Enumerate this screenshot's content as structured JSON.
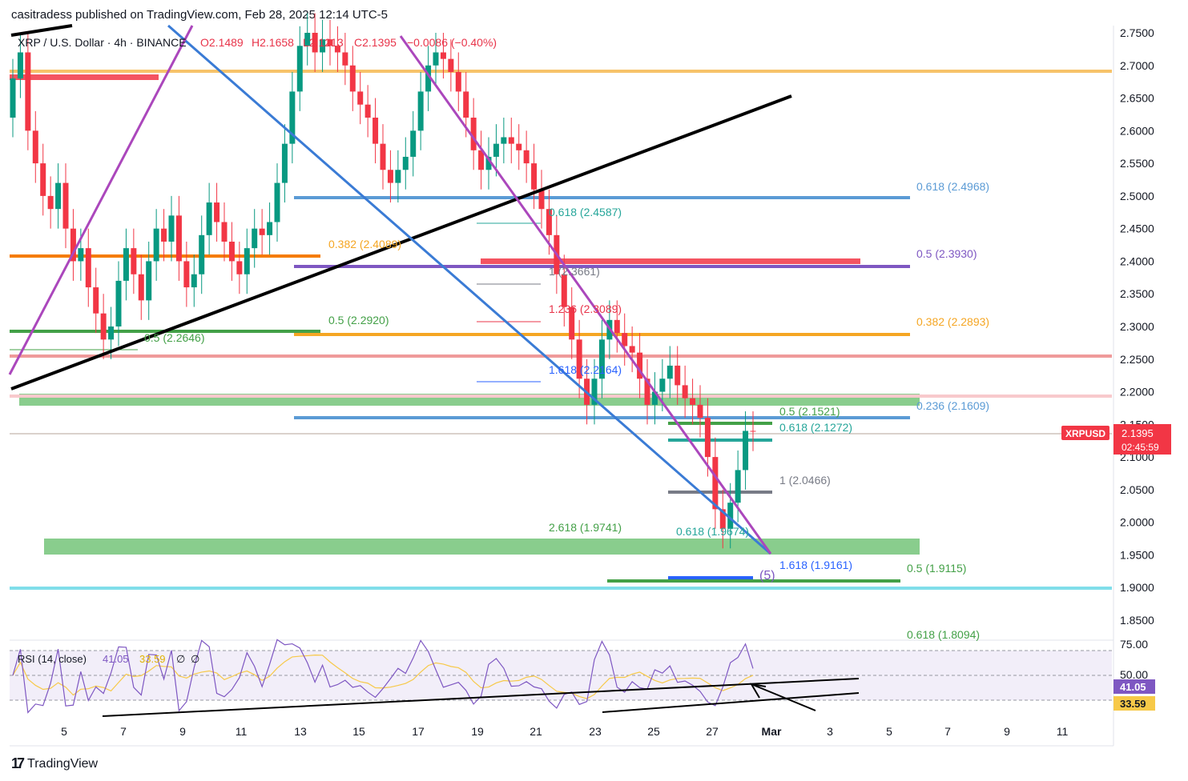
{
  "header": {
    "published_by": "casitradess published on TradingView.com, Feb 28, 2025 12:14 UTC-5"
  },
  "legend": {
    "symbol_line": "XRP / U.S. Dollar · 4h · BINANCE",
    "open": "O2.1489",
    "high": "H2.1658",
    "low": "L2.1213",
    "close": "C2.1395",
    "change": "−0.0086 (−0.40%)"
  },
  "price_axis": {
    "ticks": [
      "2.7500",
      "2.7000",
      "2.6500",
      "2.6000",
      "2.5500",
      "2.5000",
      "2.4500",
      "2.4000",
      "2.3500",
      "2.3000",
      "2.2500",
      "2.2000",
      "2.1500",
      "2.1000",
      "2.0500",
      "2.0000",
      "1.9500",
      "1.9000",
      "1.8500"
    ],
    "current_symbol": "XRPUSD",
    "current_price": "2.1395",
    "countdown": "02:45:59"
  },
  "rsi": {
    "label": "RSI (14, close)",
    "value": "41.05",
    "ma": "33.59",
    "extra1": "∅",
    "extra2": "∅",
    "ticks": [
      "75.00",
      "50.00"
    ],
    "badge_value": "41.05",
    "badge_ma": "33.59",
    "colors": {
      "rsi": "#7e57c2",
      "ma": "#f7c948",
      "band": "#ede7f6"
    }
  },
  "time_axis": {
    "ticks": [
      "5",
      "7",
      "9",
      "11",
      "13",
      "15",
      "17",
      "19",
      "21",
      "23",
      "25",
      "27",
      "Mar",
      "3",
      "5",
      "7",
      "9",
      "11"
    ]
  },
  "annotations": [
    {
      "text": "0.618 (2.4968)",
      "color": "#5b9bd5"
    },
    {
      "text": "0.618 (2.4587)",
      "color": "#26a69a"
    },
    {
      "text": "0.382 (2.4089)",
      "color": "#f5a623"
    },
    {
      "text": "0.5 (2.3930)",
      "color": "#7e57c2"
    },
    {
      "text": "1 (2.3661)",
      "color": "#787b86"
    },
    {
      "text": "1.236 (2.3089)",
      "color": "#e8344a"
    },
    {
      "text": "0.5 (2.2920)",
      "color": "#43a047"
    },
    {
      "text": "0.382 (2.2893)",
      "color": "#f5a623"
    },
    {
      "text": "0.5 (2.2646)",
      "color": "#43a047"
    },
    {
      "text": "1.618 (2.2164)",
      "color": "#2962ff"
    },
    {
      "text": "0.236 (2.1609)",
      "color": "#5b9bd5"
    },
    {
      "text": "0.5 (2.1521)",
      "color": "#43a047"
    },
    {
      "text": "0.618 (2.1272)",
      "color": "#26a69a"
    },
    {
      "text": "1 (2.0466)",
      "color": "#787b86"
    },
    {
      "text": "2.618 (1.9741)",
      "color": "#43a047"
    },
    {
      "text": "0.618 (1.9674)",
      "color": "#26a69a"
    },
    {
      "text": "1.618 (1.9161)",
      "color": "#2962ff"
    },
    {
      "text": "0.5 (1.9115)",
      "color": "#43a047"
    },
    {
      "text": "0.618 (1.8094)",
      "color": "#43a047"
    },
    {
      "text": "(5)",
      "color": "#7e57c2"
    }
  ],
  "chart_data": {
    "type": "candlestick",
    "timeframe": "4h",
    "symbol": "XRPUSD",
    "ylim": [
      1.8,
      2.77
    ],
    "x_range_days": [
      "Feb 3",
      "Mar 12"
    ],
    "closes": [
      2.68,
      2.72,
      2.6,
      2.55,
      2.5,
      2.48,
      2.52,
      2.45,
      2.4,
      2.42,
      2.36,
      2.32,
      2.28,
      2.3,
      2.37,
      2.42,
      2.38,
      2.34,
      2.4,
      2.45,
      2.43,
      2.47,
      2.4,
      2.36,
      2.38,
      2.44,
      2.49,
      2.46,
      2.43,
      2.4,
      2.38,
      2.42,
      2.45,
      2.44,
      2.46,
      2.52,
      2.58,
      2.66,
      2.73,
      2.75,
      2.72,
      2.74,
      2.73,
      2.72,
      2.7,
      2.66,
      2.64,
      2.62,
      2.58,
      2.54,
      2.52,
      2.54,
      2.56,
      2.6,
      2.66,
      2.7,
      2.72,
      2.71,
      2.69,
      2.66,
      2.62,
      2.57,
      2.54,
      2.56,
      2.58,
      2.59,
      2.58,
      2.57,
      2.55,
      2.51,
      2.48,
      2.44,
      2.38,
      2.33,
      2.28,
      2.22,
      2.18,
      2.22,
      2.28,
      2.31,
      2.29,
      2.27,
      2.26,
      2.22,
      2.18,
      2.2,
      2.22,
      2.24,
      2.21,
      2.19,
      2.18,
      2.16,
      2.1,
      2.02,
      1.99,
      2.03,
      2.08,
      2.14,
      2.139
    ],
    "current_price": 2.1395,
    "horizontal_levels": [
      {
        "price": 2.69,
        "color": "#f7c36a"
      },
      {
        "price": 2.4968,
        "color": "#5b9bd5"
      },
      {
        "price": 2.4089,
        "color": "#f57c00"
      },
      {
        "price": 2.393,
        "color": "#7e57c2"
      },
      {
        "price": 2.2893,
        "color": "#f5a623"
      },
      {
        "price": 2.292,
        "color": "#43a047"
      },
      {
        "price": 2.254,
        "color": "#ef9a9a"
      },
      {
        "price": 2.195,
        "color": "#f8c9cc"
      },
      {
        "price": 2.1609,
        "color": "#5b9bd5"
      },
      {
        "price": 1.9,
        "color": "#80deea"
      }
    ]
  }
}
